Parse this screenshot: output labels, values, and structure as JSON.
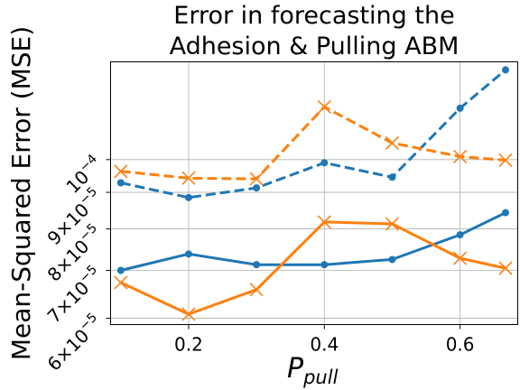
{
  "chart_data": {
    "type": "line",
    "title_lines": [
      "Error in forecasting the",
      "Adhesion & Pulling ABM"
    ],
    "xlabel_main": "P",
    "xlabel_sub": "pull",
    "ylabel": "Mean-Squared Error (MSE)",
    "x_ticks": [
      {
        "value": 0.2,
        "label": "0.2"
      },
      {
        "value": 0.4,
        "label": "0.4"
      },
      {
        "value": 0.6,
        "label": "0.6"
      }
    ],
    "y_ticks": [
      {
        "value": 6e-05,
        "mant": "6",
        "exp": "−5"
      },
      {
        "value": 7e-05,
        "mant": "7",
        "exp": "−5"
      },
      {
        "value": 8e-05,
        "mant": "8",
        "exp": "−5"
      },
      {
        "value": 9e-05,
        "mant": "9",
        "exp": "−5"
      },
      {
        "value": 0.0001,
        "mant": "",
        "exp": "−4"
      }
    ],
    "y_scale": "log",
    "xlim": [
      0.085,
      0.685
    ],
    "ylim": [
      5.88e-05,
      0.000137
    ],
    "grid": true,
    "series": [
      {
        "color": "#1f77b4",
        "linestyle": "dashed",
        "marker": "circle",
        "x": [
          0.1,
          0.2,
          0.3,
          0.4,
          0.5,
          0.6,
          0.667
        ],
        "y": [
          9.28e-05,
          8.85e-05,
          9.13e-05,
          9.9e-05,
          9.45e-05,
          0.000118,
          0.0001335
        ]
      },
      {
        "color": "#ff7f0e",
        "linestyle": "dashed",
        "marker": "x",
        "x": [
          0.1,
          0.2,
          0.3,
          0.4,
          0.5,
          0.6,
          0.667
        ],
        "y": [
          9.63e-05,
          9.42e-05,
          9.4e-05,
          0.0001185,
          0.0001055,
          0.000101,
          9.98e-05
        ]
      },
      {
        "color": "#1f77b4",
        "linestyle": "solid",
        "marker": "circle",
        "x": [
          0.1,
          0.2,
          0.3,
          0.4,
          0.5,
          0.6,
          0.667
        ],
        "y": [
          7e-05,
          7.38e-05,
          7.13e-05,
          7.13e-05,
          7.25e-05,
          7.85e-05,
          8.43e-05
        ]
      },
      {
        "color": "#ff7f0e",
        "linestyle": "solid",
        "marker": "x",
        "x": [
          0.1,
          0.2,
          0.3,
          0.4,
          0.5,
          0.6,
          0.667
        ],
        "y": [
          6.73e-05,
          6.08e-05,
          6.58e-05,
          8.18e-05,
          8.13e-05,
          7.28e-05,
          7.05e-05
        ]
      }
    ]
  }
}
